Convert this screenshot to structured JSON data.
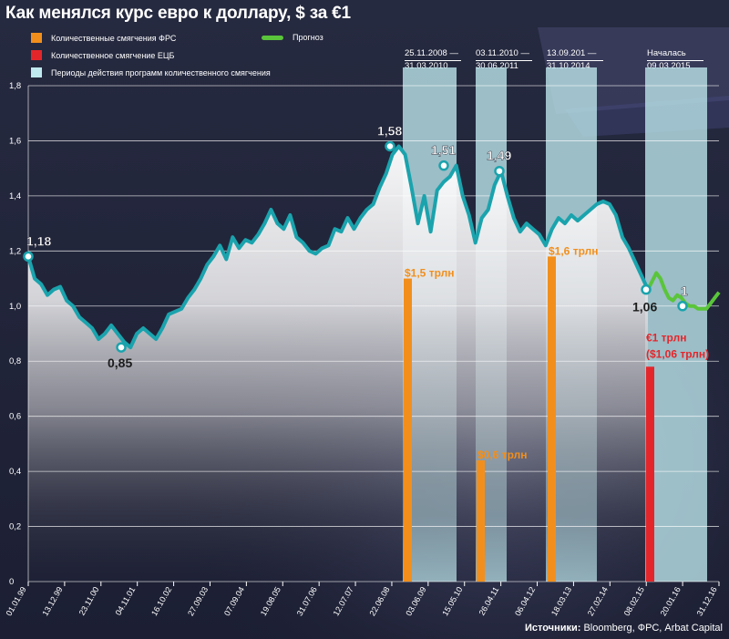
{
  "title": "Как менялся курс евро к доллару, $ за €1",
  "legend": [
    {
      "label": "Количественные смягчения ФРС",
      "color": "#f28f1c"
    },
    {
      "label": "Количественное смягчение ЕЦБ",
      "color": "#e4262b"
    },
    {
      "label": "Периоды действия программ количественного смягчения",
      "color": "#bfe9ee"
    },
    {
      "label": "Прогноз",
      "color": "#5ac53a"
    }
  ],
  "periods": [
    {
      "line1": "25.11.2008 —",
      "line2": "31.03.2010"
    },
    {
      "line1": "03.11.2010 —",
      "line2": "30.06.2011"
    },
    {
      "line1": "13.09.201 —",
      "line2": "31.10.2014"
    },
    {
      "line1": "Началась",
      "line2": "09.03.2015"
    }
  ],
  "source": {
    "prefix": "Источники:",
    "text": " Bloomberg, ФРС, Arbat Capital"
  },
  "chart_data": {
    "type": "line",
    "ylim": [
      0,
      1.8
    ],
    "yticks": [
      "0",
      "0,2",
      "0,4",
      "0,6",
      "0,8",
      "1,0",
      "1,2",
      "1,4",
      "1,6",
      "1,8"
    ],
    "xticks": [
      "01.01.99",
      "13.12.99",
      "23.11.00",
      "04.11.01",
      "16.10.02",
      "27.09.03",
      "07.09.04",
      "19.08.05",
      "31.07.06",
      "12.07.07",
      "22.06.08",
      "03.06.09",
      "15.05.10",
      "26.04.11",
      "06.04.12",
      "18.03.13",
      "27.02.14",
      "08.02.15",
      "20.01.16",
      "31.12.16"
    ],
    "series": [
      {
        "values": [
          1.18,
          1.1,
          1.08,
          1.04,
          1.06,
          1.07,
          1.02,
          1.0,
          0.96,
          0.94,
          0.92,
          0.88,
          0.9,
          0.93,
          0.9,
          0.87,
          0.85,
          0.9,
          0.92,
          0.9,
          0.88,
          0.92,
          0.97,
          0.98,
          0.99,
          1.03,
          1.06,
          1.1,
          1.15,
          1.18,
          1.22,
          1.17,
          1.25,
          1.21,
          1.24,
          1.23,
          1.26,
          1.3,
          1.35,
          1.3,
          1.28,
          1.33,
          1.25,
          1.23,
          1.2,
          1.19,
          1.21,
          1.22,
          1.28,
          1.27,
          1.32,
          1.28,
          1.32,
          1.35,
          1.37,
          1.43,
          1.48,
          1.55,
          1.58,
          1.55,
          1.43,
          1.3,
          1.4,
          1.27,
          1.42,
          1.45,
          1.47,
          1.51,
          1.4,
          1.33,
          1.23,
          1.32,
          1.35,
          1.44,
          1.49,
          1.4,
          1.32,
          1.27,
          1.3,
          1.28,
          1.26,
          1.22,
          1.28,
          1.32,
          1.3,
          1.33,
          1.31,
          1.33,
          1.35,
          1.37,
          1.38,
          1.37,
          1.33,
          1.25,
          1.21,
          1.16,
          1.11,
          1.06
        ]
      },
      {
        "name": "Прогноз",
        "values": [
          1.06,
          1.09,
          1.12,
          1.1,
          1.06,
          1.03,
          1.02,
          1.04,
          1.03,
          1.01,
          1.0,
          1.0,
          0.99,
          0.99,
          0.99,
          1.01,
          1.03,
          1.05
        ]
      }
    ],
    "qe_bars": [
      {
        "label": "$1,5 трлн",
        "value": 1.1,
        "color": "#f28f1c"
      },
      {
        "label": "$0,6 трлн",
        "value": 0.44,
        "color": "#f28f1c"
      },
      {
        "label": "$1,6 трлн",
        "value": 1.18,
        "color": "#f28f1c"
      },
      {
        "label": "€1 трлн",
        "label2": "($1,06 трлн)",
        "value": 0.78,
        "color": "#e4262b"
      }
    ],
    "point_labels": [
      {
        "text": "1,18",
        "value": 1.18
      },
      {
        "text": "0,85",
        "value": 0.85
      },
      {
        "text": "1,58",
        "value": 1.58
      },
      {
        "text": "1,51",
        "value": 1.51
      },
      {
        "text": "1,49",
        "value": 1.49
      },
      {
        "text": "1,06",
        "value": 1.06
      },
      {
        "text": "1",
        "value": 1.0
      }
    ],
    "colors": {
      "line": "#1aa3ad",
      "forecast": "#5ac53a",
      "period": "#bfe9ee"
    }
  }
}
